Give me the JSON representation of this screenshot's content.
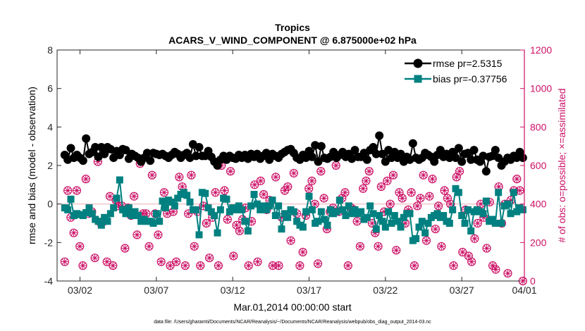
{
  "chart_data": {
    "type": "line",
    "title": "Tropics",
    "subtitle": "ACARS_V_WIND_COMPONENT @ 6.875000e+02 hPa",
    "xlabel": "Mar.01,2014 00:00:00 start",
    "ylabel_left": "rmse and bias (model - observation)",
    "ylabel_right": "# of obs: o=possible; ×=assimilated",
    "footer": "data file: /Users/gharamti/Documents/NCAR/Reanalysis/~/Documents/NCAR/Reanalysis/webpub/obs_diag_output_2014-03.nc",
    "xlim": [
      0.5,
      31.1
    ],
    "ylim_left": [
      -4,
      8
    ],
    "ylim_right": [
      0,
      1200
    ],
    "x_ticks": [
      2,
      7,
      12,
      17,
      22,
      27,
      32
    ],
    "x_tick_labels": [
      "03/02",
      "03/07",
      "03/12",
      "03/17",
      "03/22",
      "03/27",
      "04/01"
    ],
    "y_ticks_left": [
      -4,
      -2,
      0,
      2,
      4,
      6,
      8
    ],
    "y_tick_labels_left": [
      "-4",
      "-2",
      "0",
      "2",
      "4",
      "6",
      "8"
    ],
    "y_ticks_right": [
      0,
      200,
      400,
      600,
      800,
      1000,
      1200
    ],
    "y_tick_labels_right": [
      "0",
      "200",
      "400",
      "600",
      "800",
      "1000",
      "1200"
    ],
    "series": [
      {
        "name": "rmse pr=2.5315",
        "color": "#000000",
        "marker": "circle",
        "axis": "left",
        "values": [
          2.55,
          2.3,
          2.9,
          2.4,
          2.55,
          2.4,
          2.25,
          3.4,
          2.6,
          2.7,
          2.95,
          2.45,
          2.95,
          2.6,
          2.95,
          2.85,
          2.4,
          2.75,
          2.55,
          2.85,
          2.8,
          2.35,
          2.6,
          2.5,
          2.4,
          2.2,
          2.4,
          2.65,
          2.25,
          2.65,
          2.6,
          2.55,
          2.6,
          2.5,
          2.4,
          2.55,
          2.7,
          2.6,
          2.4,
          2.55,
          2.65,
          2.4,
          3.1,
          2.5,
          2.95,
          2.5,
          2.5,
          2.75,
          2.45,
          2.2,
          2.0,
          2.3,
          2.5,
          2.3,
          2.5,
          2.4,
          2.35,
          2.55,
          2.4,
          2.55,
          2.35,
          2.6,
          2.45,
          2.6,
          2.35,
          2.5,
          2.65,
          2.3,
          2.6,
          2.5,
          2.4,
          2.6,
          2.7,
          2.8,
          2.85,
          2.65,
          2.4,
          2.3,
          2.55,
          2.4,
          2.75,
          2.45,
          3.05,
          2.2,
          3.0,
          2.4,
          2.35,
          2.45,
          2.7,
          2.4,
          2.55,
          2.7,
          2.45,
          2.6,
          2.35,
          2.8,
          2.45,
          2.45,
          2.65,
          2.3,
          2.8,
          2.95,
          2.6,
          3.55,
          2.6,
          2.2,
          2.8,
          2.4,
          2.7,
          2.4,
          2.6,
          2.2,
          2.45,
          2.3,
          3.15,
          2.4,
          2.3,
          2.4,
          2.65,
          2.55,
          2.45,
          2.2,
          2.55,
          2.8,
          2.45,
          2.6,
          2.4,
          2.7,
          2.4,
          2.9,
          2.2,
          2.6,
          2.65,
          2.3,
          2.8,
          2.3,
          2.2,
          2.5,
          1.7,
          2.45,
          2.5,
          2.8,
          2.4,
          2.0,
          2.2,
          2.4,
          2.3,
          2.5,
          2.4,
          2.7,
          2.4
        ]
      },
      {
        "name": "bias pr=-0.37756",
        "color": "#008080",
        "marker": "square",
        "axis": "left",
        "values": [
          -0.2,
          -0.3,
          0.25,
          -0.6,
          -0.5,
          -0.55,
          -0.6,
          -0.45,
          -0.2,
          -0.5,
          -0.8,
          -0.9,
          -1.1,
          -0.7,
          -0.9,
          -0.5,
          -0.2,
          0.3,
          1.25,
          -0.3,
          -0.5,
          -0.2,
          -0.6,
          -0.4,
          -0.6,
          -0.9,
          -0.8,
          -0.9,
          -0.9,
          -1.0,
          -0.5,
          -0.9,
          0.15,
          -0.2,
          0.2,
          0.1,
          -0.1,
          0.3,
          0.5,
          0.6,
          0.45,
          0.1,
          -0.3,
          -0.3,
          -1.6,
          0.6,
          0.55,
          -0.2,
          -0.4,
          -0.6,
          -1.5,
          -0.3,
          0.3,
          0.25,
          -0.4,
          -0.2,
          -0.3,
          -0.1,
          -0.3,
          -0.9,
          -1.4,
          -0.1,
          0.5,
          0.0,
          -0.3,
          -0.1,
          -0.3,
          -0.1,
          0.2,
          -0.6,
          -0.1,
          -1.3,
          -0.5,
          -0.7,
          -0.3,
          -0.4,
          -0.9,
          -1.1,
          -1.2,
          -0.4,
          0.4,
          -0.3,
          -1.0,
          -0.9,
          -0.4,
          -0.8,
          -1.1,
          -0.3,
          -0.5,
          -0.4,
          0.2,
          -0.3,
          -0.6,
          -0.1,
          -0.5,
          -0.3,
          -0.5,
          -0.4,
          -0.8,
          -0.7,
          -0.1,
          -0.5,
          -1.3,
          -0.6,
          -0.9,
          -1.2,
          -0.4,
          -1.0,
          -0.6,
          -0.9,
          -1.2,
          -0.7,
          -0.5,
          -0.5,
          -1.9,
          -1.8,
          -1.2,
          -0.9,
          -1.5,
          -1.0,
          -0.7,
          -0.6,
          -0.5,
          -0.7,
          -0.6,
          -0.9,
          -1.0,
          -0.3,
          0.8,
          0.6,
          -0.6,
          -1.0,
          -0.3,
          -1.4,
          -0.4,
          -0.3,
          -0.4,
          -0.5,
          0.15,
          -0.9,
          -0.8,
          -1.0,
          0.6,
          -1.0,
          -0.1,
          0.0,
          -0.5,
          0.6,
          -0.4,
          -0.2,
          -0.3
        ]
      },
      {
        "name": "# obs possible",
        "color": "#cc1166",
        "marker": "circle-open",
        "axis": "right",
        "values": [
          100,
          470,
          330,
          250,
          470,
          180,
          80,
          530,
          350,
          360,
          120,
          620,
          300,
          310,
          100,
          440,
          80,
          420,
          390,
          390,
          170,
          380,
          340,
          440,
          240,
          610,
          350,
          350,
          180,
          550,
          350,
          240,
          100,
          460,
          350,
          80,
          360,
          100,
          540,
          490,
          80,
          350,
          550,
          180,
          360,
          80,
          390,
          300,
          120,
          330,
          460,
          80,
          600,
          470,
          320,
          570,
          130,
          290,
          260,
          320,
          380,
          80,
          310,
          500,
          100,
          520,
          450,
          370,
          420,
          80,
          540,
          80,
          330,
          470,
          490,
          210,
          560,
          350,
          80,
          150,
          340,
          480,
          520,
          400,
          90,
          570,
          430,
          270,
          360,
          380,
          600,
          360,
          430,
          460,
          80,
          380,
          370,
          310,
          180,
          480,
          520,
          570,
          300,
          250,
          180,
          490,
          360,
          520,
          400,
          550,
          160,
          460,
          430,
          300,
          370,
          460,
          80,
          390,
          430,
          550,
          210,
          440,
          530,
          270,
          390,
          180,
          470,
          430,
          400,
          80,
          540,
          570,
          150,
          370,
          130,
          100,
          220,
          300,
          400,
          330,
          170,
          410,
          80,
          60,
          490,
          300,
          400,
          40,
          420,
          470,
          530,
          470,
          0
        ]
      },
      {
        "name": "# obs assimilated",
        "color": "#cc1166",
        "marker": "x",
        "axis": "right",
        "values": [
          100,
          470,
          330,
          250,
          470,
          180,
          80,
          530,
          350,
          360,
          120,
          620,
          300,
          310,
          100,
          440,
          80,
          420,
          390,
          390,
          170,
          380,
          340,
          440,
          240,
          610,
          350,
          350,
          180,
          550,
          350,
          240,
          100,
          460,
          350,
          80,
          360,
          100,
          540,
          490,
          80,
          350,
          550,
          180,
          360,
          80,
          390,
          300,
          120,
          330,
          460,
          80,
          600,
          470,
          320,
          570,
          130,
          290,
          260,
          320,
          380,
          80,
          310,
          500,
          100,
          520,
          450,
          370,
          420,
          80,
          540,
          80,
          330,
          470,
          490,
          210,
          560,
          350,
          80,
          150,
          340,
          480,
          520,
          400,
          90,
          570,
          430,
          270,
          360,
          380,
          600,
          360,
          430,
          460,
          80,
          380,
          370,
          310,
          180,
          480,
          520,
          570,
          300,
          250,
          180,
          490,
          360,
          520,
          400,
          550,
          160,
          460,
          430,
          300,
          370,
          460,
          80,
          390,
          430,
          550,
          210,
          440,
          530,
          270,
          390,
          180,
          470,
          430,
          400,
          80,
          540,
          570,
          150,
          370,
          130,
          100,
          220,
          300,
          400,
          330,
          170,
          410,
          80,
          60,
          490,
          300,
          400,
          40,
          420,
          470,
          530,
          470,
          0
        ]
      }
    ],
    "legend": {
      "placement": "top-right",
      "entries": [
        "rmse pr=2.5315",
        "bias pr=-0.37756"
      ]
    }
  }
}
